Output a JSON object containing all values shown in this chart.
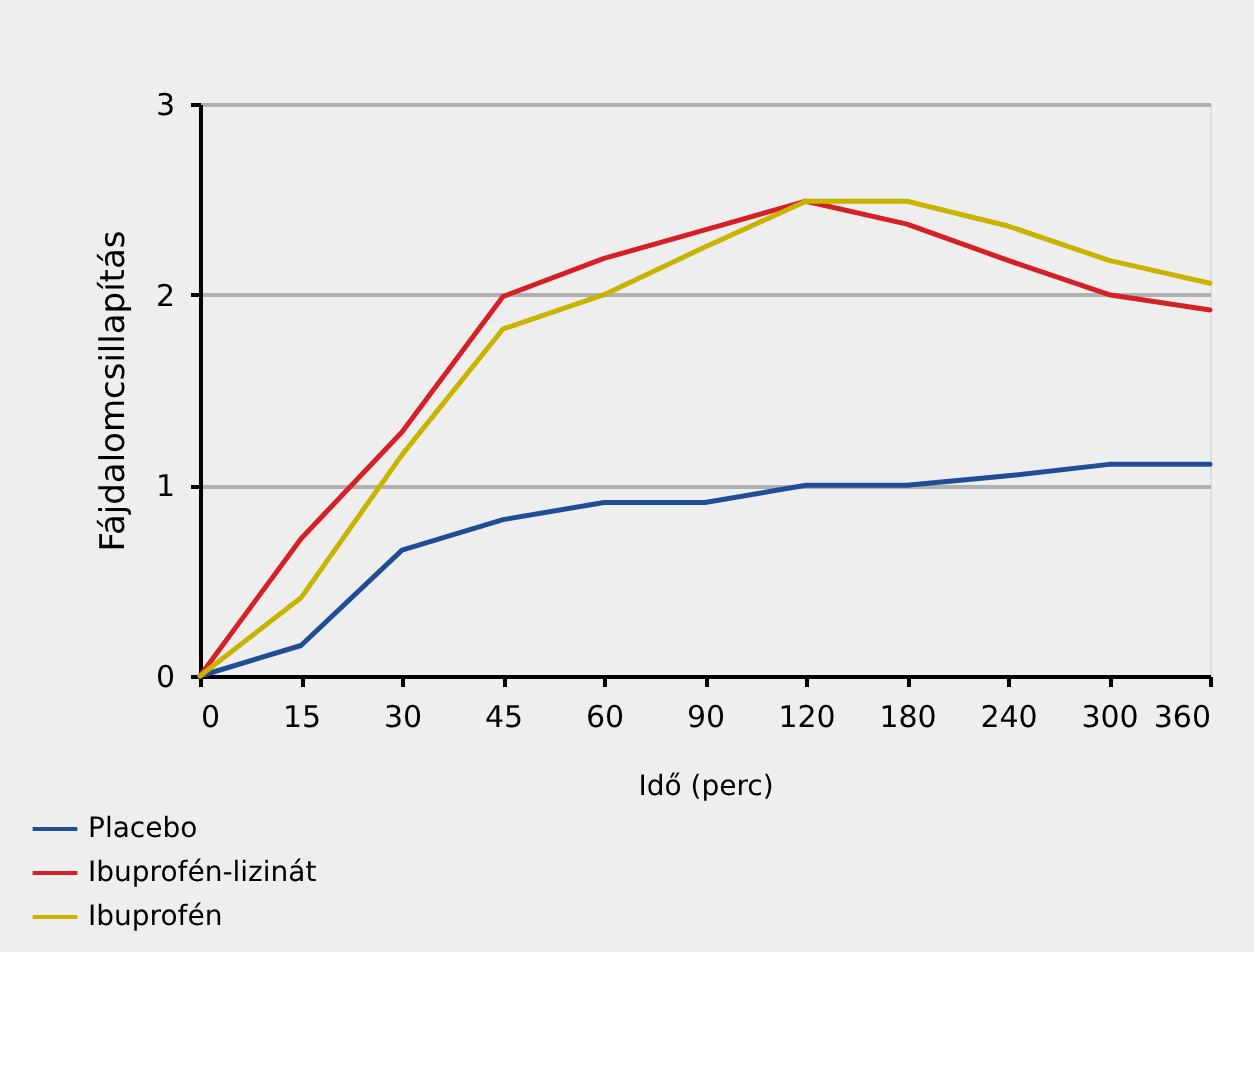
{
  "chart_data": {
    "type": "line",
    "xlabel": "Idő (perc)",
    "ylabel": "Fájdalomcsillapítás",
    "categories": [
      "0",
      "15",
      "30",
      "45",
      "60",
      "90",
      "120",
      "180",
      "240",
      "300",
      "360"
    ],
    "series": [
      {
        "name": "Placebo",
        "color": "#1f4e96",
        "values": [
          0,
          0.16,
          0.66,
          0.82,
          0.91,
          0.91,
          1.0,
          1.0,
          1.05,
          1.11,
          1.11
        ]
      },
      {
        "name": "Ibuprofén-lizinát",
        "color": "#d42027",
        "values": [
          0,
          0.72,
          1.28,
          1.99,
          2.19,
          2.34,
          2.49,
          2.37,
          2.18,
          2.0,
          1.92
        ]
      },
      {
        "name": "Ibuprofén",
        "color": "#c8b400",
        "values": [
          0,
          0.41,
          1.16,
          1.82,
          2.0,
          2.25,
          2.49,
          2.49,
          2.36,
          2.18,
          2.06
        ]
      }
    ],
    "ylim": [
      0,
      3
    ],
    "yticks": [
      0,
      1,
      2,
      3
    ],
    "grid": "y",
    "legend": "bottom left",
    "marker": "none",
    "line_style": "solid"
  }
}
